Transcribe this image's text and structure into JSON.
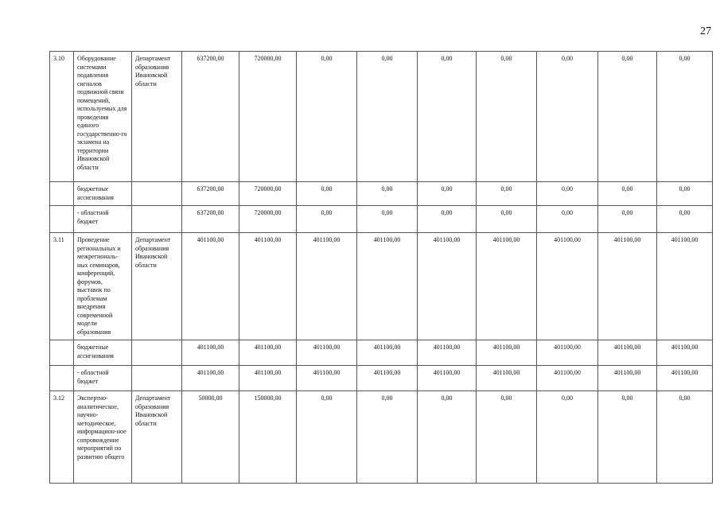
{
  "page_number": "27",
  "rows": [
    {
      "no": "3.10",
      "name": "Оборудование системами подавления сигналов подвижной связи помещений, используемых для проведения единого государственно-го экзамена на территории Ивановской области",
      "exec": "Департамент образования Ивановской области",
      "values": [
        "637200,00",
        "720000,00",
        "0,00",
        "0,00",
        "0,00",
        "0,00",
        "0,00",
        "0,00",
        "0,00"
      ]
    },
    {
      "no": "",
      "name": "бюджетные ассигнования",
      "exec": "",
      "values": [
        "637200,00",
        "720000,00",
        "0,00",
        "0,00",
        "0,00",
        "0,00",
        "0,00",
        "0,00",
        "0,00"
      ]
    },
    {
      "no": "",
      "name": "- областной бюджет",
      "exec": "",
      "values": [
        "637200,00",
        "720000,00",
        "0,00",
        "0,00",
        "0,00",
        "0,00",
        "0,00",
        "0,00",
        "0,00"
      ]
    },
    {
      "no": "3.11",
      "name": "Проведение региональных и межрегиональ-ных семинаров, конференций, форумов, выставок по проблемам внедрения современной модели образования",
      "exec": "Департамент образования Ивановской области",
      "values": [
        "401100,00",
        "401100,00",
        "401100,00",
        "401100,00",
        "401100,00",
        "401100,00",
        "401100,00",
        "401100,00",
        "401100,00"
      ]
    },
    {
      "no": "",
      "name": "бюджетные ассигнования",
      "exec": "",
      "values": [
        "401100,00",
        "401100,00",
        "401100,00",
        "401100,00",
        "401100,00",
        "401100,00",
        "401100,00",
        "401100,00",
        "401100,00"
      ]
    },
    {
      "no": "",
      "name": "- областной бюджет",
      "exec": "",
      "values": [
        "401100,00",
        "401100,00",
        "401100,00",
        "401100,00",
        "401100,00",
        "401100,00",
        "401100,00",
        "401100,00",
        "401100,00"
      ]
    },
    {
      "no": "3.12",
      "name": "Экспертно-аналитическое, научно-методическое, информацион-ное сопровождение мероприятий по развитию общего",
      "exec": "Департамент образования Ивановской области",
      "values": [
        "50000,00",
        "150000,00",
        "0,00",
        "0,00",
        "0,00",
        "0,00",
        "0,00",
        "0,00",
        "0,00"
      ]
    }
  ]
}
